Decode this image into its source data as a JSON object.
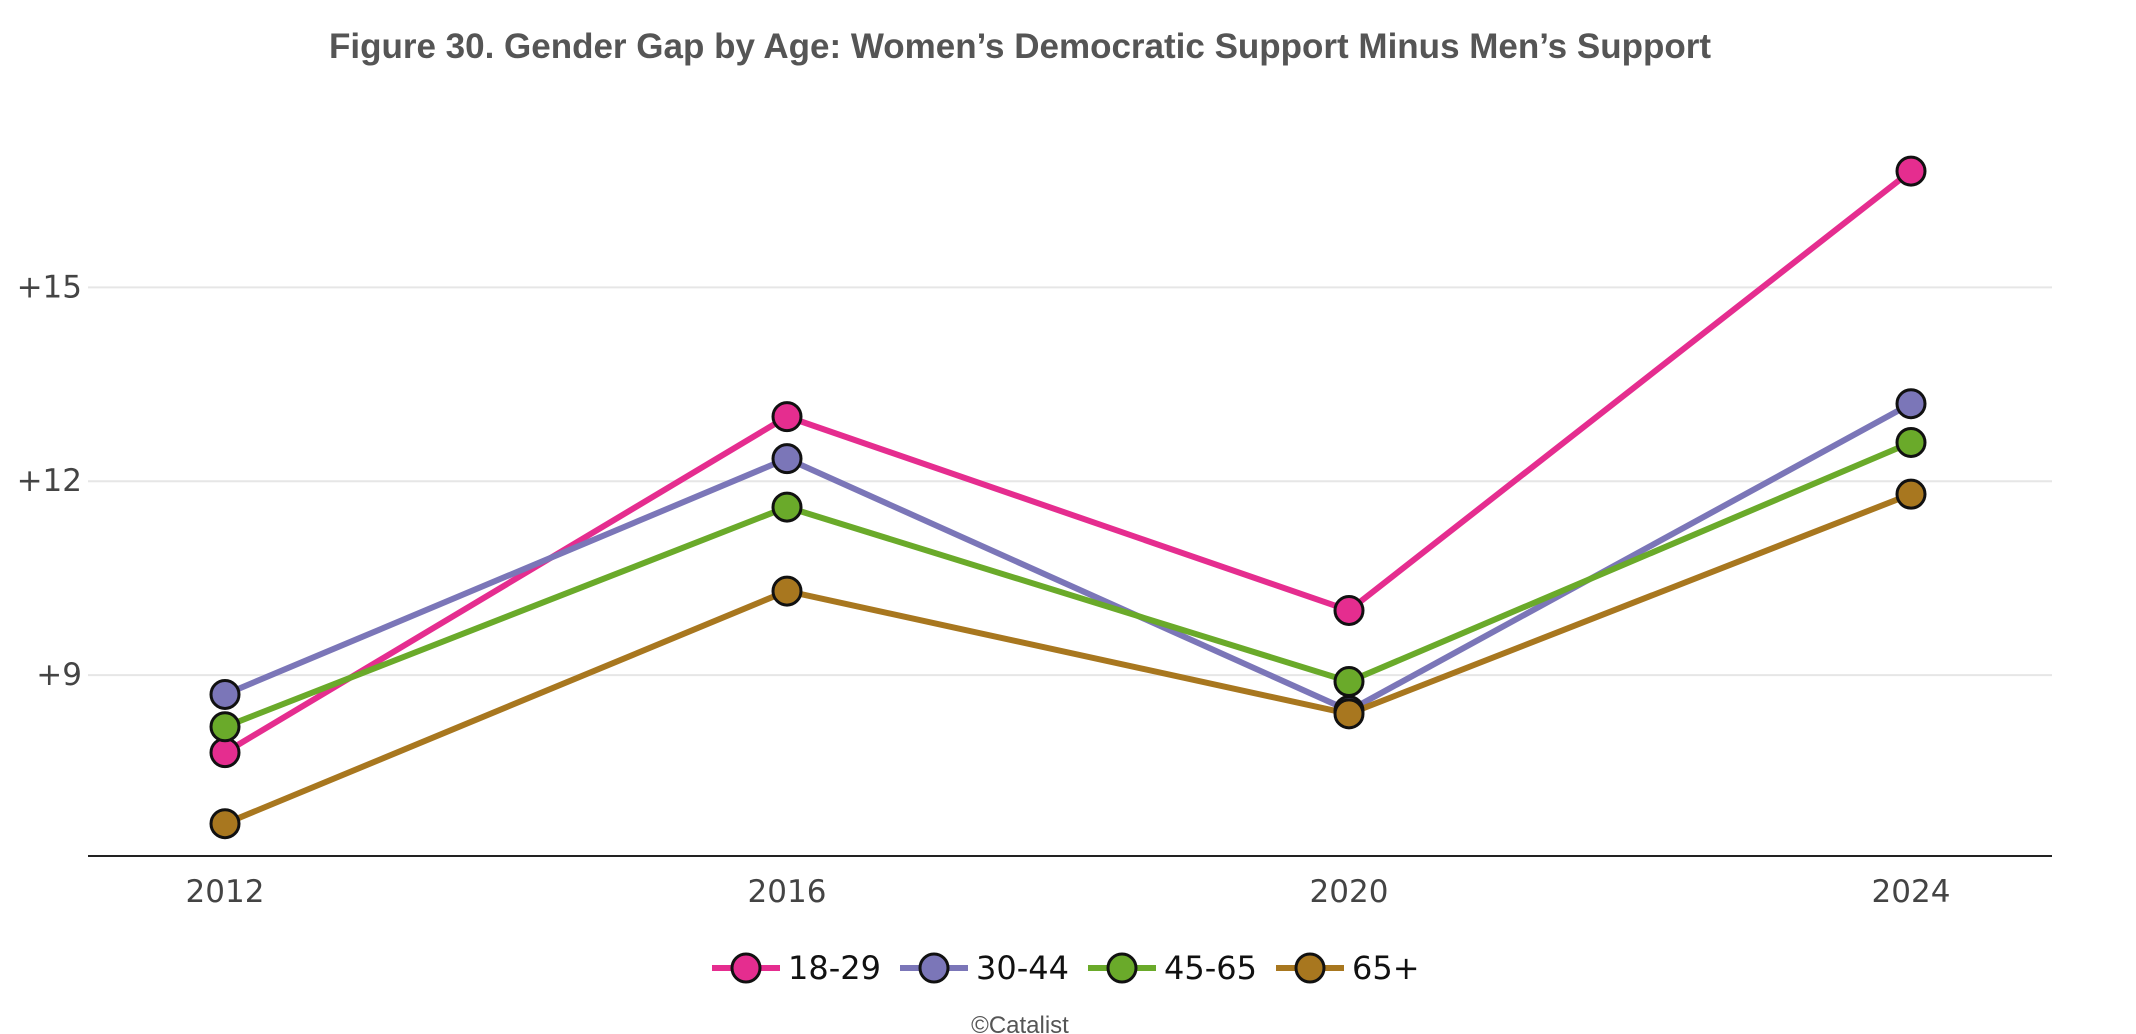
{
  "chart_data": {
    "type": "line",
    "title": "Figure 30. Gender Gap by Age: Women’s Democratic Support Minus Men’s Support",
    "xlabel": "",
    "ylabel": "",
    "x": [
      "2012",
      "2016",
      "2020",
      "2024"
    ],
    "yticks": [
      {
        "value": 9,
        "label": "+9"
      },
      {
        "value": 12,
        "label": "+12"
      },
      {
        "value": 15,
        "label": "+15"
      }
    ],
    "ylim": [
      6.2,
      17.9
    ],
    "grid": true,
    "legend_position": "bottom-center",
    "series": [
      {
        "name": "18-29",
        "color": "#e52d8f",
        "values": [
          7.8,
          13.0,
          10.0,
          16.8
        ]
      },
      {
        "name": "30-44",
        "color": "#7b76b8",
        "values": [
          8.7,
          12.35,
          8.45,
          13.2
        ]
      },
      {
        "name": "45-65",
        "color": "#6aaa2a",
        "values": [
          8.2,
          11.6,
          8.9,
          12.6
        ]
      },
      {
        "name": "65+",
        "color": "#a8771f",
        "values": [
          6.7,
          10.3,
          8.4,
          11.8
        ]
      }
    ]
  },
  "credit": "©Catalist"
}
